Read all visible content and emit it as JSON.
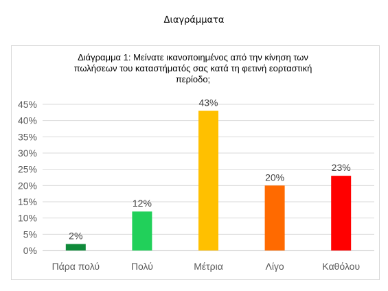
{
  "page_heading": "Διαγράμματα",
  "chart_data": {
    "type": "bar",
    "title": "Διάγραμμα 1: Μείνατε ικανοποιημένος από την κίνηση των πωλήσεων του καταστήματός σας κατά τη φετινή εορταστική περίοδο;",
    "categories": [
      "Πάρα πολύ",
      "Πολύ",
      "Μέτρια",
      "Λίγο",
      "Καθόλου"
    ],
    "values": [
      2,
      12,
      43,
      20,
      23
    ],
    "value_labels": [
      "2%",
      "12%",
      "43%",
      "20%",
      "23%"
    ],
    "colors": [
      "#0f8a3a",
      "#21d05a",
      "#ffc000",
      "#ff6a00",
      "#ff0000"
    ],
    "ylim": [
      0,
      45
    ],
    "yticks": [
      "0%",
      "5%",
      "10%",
      "15%",
      "20%",
      "25%",
      "30%",
      "35%",
      "40%",
      "45%"
    ],
    "xlabel": "",
    "ylabel": "",
    "grid": true,
    "legend": "none"
  }
}
